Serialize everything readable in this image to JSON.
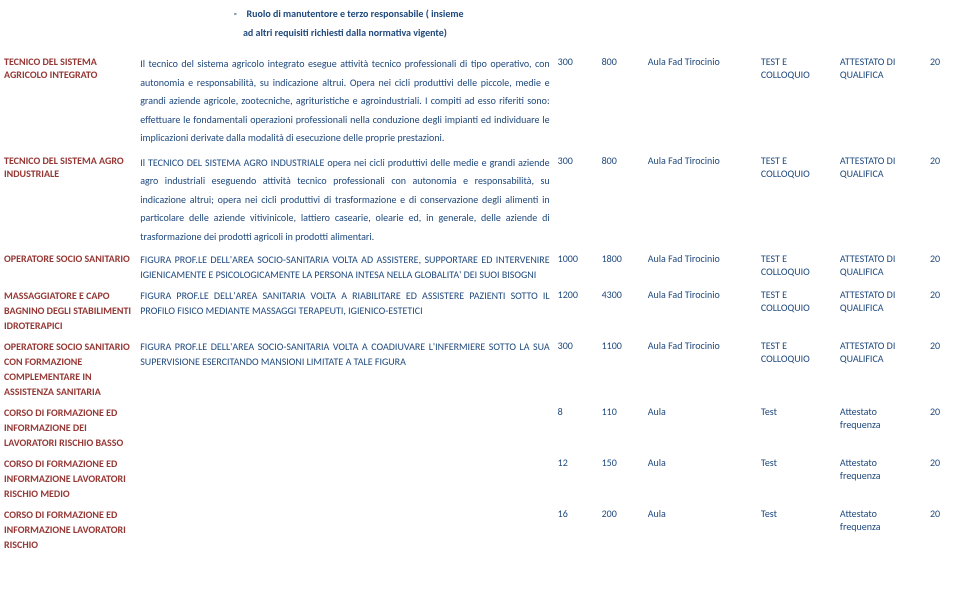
{
  "header": {
    "bullet": "-",
    "line1": "Ruolo di manutentore e terzo responsabile ( insieme",
    "line2": "ad altri requisiti richiesti dalla normativa vigente)"
  },
  "rows": [
    {
      "label": "TECNICO DEL SISTEMA AGRICOLO INTEGRATO",
      "desc": "Il tecnico del sistema agricolo integrato esegue attività tecnico professionali di tipo operativo, con autonomia e responsabilità, su indicazione altrui. Opera nei cicli produttivi delle piccole, medie e grandi aziende agricole, zootecniche, agrituristiche e agroindustriali. I compiti ad esso riferiti sono: effettuare le fondamentali operazioni professionali nella conduzione degli impianti ed individuare le implicazioni derivate dalla modalità di esecuzione delle proprie prestazioni.",
      "n1": "300",
      "n2": "800",
      "aula": "Aula Fad Tirocinio",
      "test1": "TEST E",
      "test2": "COLLOQUIO",
      "att1": "ATTESTATO DI",
      "att2": "QUALIFICA",
      "end": "20"
    },
    {
      "label": "TECNICO DEL SISTEMA AGRO INDUSTRIALE",
      "desc": "Il TECNICO DEL SISTEMA AGRO INDUSTRIALE opera nei cicli produttivi delle medie e grandi aziende agro industriali eseguendo attività tecnico professionali con autonomia e responsabilità, su indicazione altrui; opera nei cicli produttivi di trasformazione e di conservazione degli alimenti in particolare  delle aziende vitivinicole, lattiero casearie, olearie ed, in generale, delle aziende di trasformazione dei prodotti agricoli in prodotti alimentari.",
      "n1": "300",
      "n2": "800",
      "aula": "Aula Fad Tirocinio",
      "test1": "TEST E",
      "test2": "COLLOQUIO",
      "att1": "ATTESTATO DI",
      "att2": "QUALIFICA",
      "end": "20"
    },
    {
      "label": "OPERATORE SOCIO SANITARIO",
      "desc": "FIGURA PROF.LE  DELL'AREA SOCIO-SANITARIA VOLTA AD ASSISTERE, SUPPORTARE ED INTERVENIRE IGIENICAMENTE E PSICOLOGICAMENTE LA PERSONA INTESA NELLA GLOBALITA' DEI SUOI BISOGNI",
      "n1": "1000",
      "n2": "1800",
      "aula": "Aula Fad Tirocinio",
      "test1": "TEST E",
      "test2": "COLLOQUIO",
      "att1": "ATTESTATO DI",
      "att2": "QUALIFICA",
      "end": "20"
    },
    {
      "label": "MASSAGGIATORE E CAPO BAGNINO DEGLI STABILIMENTI IDROTERAPICI",
      "desc": "FIGURA PROF.LE  DELL'AREA SANITARIA VOLTA A RIABILITARE ED ASSISTERE PAZIENTI SOTTO IL PROFILO FISICO MEDIANTE MASSAGGI TERAPEUTI, IGIENICO-ESTETICI",
      "n1": "1200",
      "n2": "4300",
      "aula": "Aula Fad Tirocinio",
      "test1": "TEST E",
      "test2": "COLLOQUIO",
      "att1": "ATTESTATO DI",
      "att2": "QUALIFICA",
      "end": "20"
    },
    {
      "label": "OPERATORE SOCIO SANITARIO CON FORMAZIONE COMPLEMENTARE IN ASSISTENZA SANITARIA",
      "desc": "FIGURA PROF.LE  DELL'AREA SOCIO-SANITARIA VOLTA A COADIUVARE L'INFERMIERE SOTTO LA SUA SUPERVISIONE ESERCITANDO MANSIONI LIMITATE A TALE FIGURA",
      "n1": "300",
      "n2": "1100",
      "aula": "Aula Fad Tirocinio",
      "test1": "TEST E",
      "test2": "COLLOQUIO",
      "att1": "ATTESTATO DI",
      "att2": "QUALIFICA",
      "end": "20"
    },
    {
      "label": "CORSO DI FORMAZIONE ED INFORMAZIONE DEI LAVORATORI RISCHIO BASSO",
      "desc": "",
      "n1": "8",
      "n2": "110",
      "aula": "Aula",
      "test1": "Test",
      "test2": "",
      "att1": "Attestato",
      "att2": "frequenza",
      "end": "20"
    },
    {
      "label": "CORSO DI FORMAZIONE ED INFORMAZIONE LAVORATORI RISCHIO MEDIO",
      "desc": "",
      "n1": "12",
      "n2": "150",
      "aula": "Aula",
      "test1": "Test",
      "test2": "",
      "att1": "Attestato",
      "att2": "frequenza",
      "end": "20"
    },
    {
      "label": "CORSO DI FORMAZIONE ED INFORMAZIONE LAVORATORI RISCHIO",
      "desc": "",
      "n1": "16",
      "n2": "200",
      "aula": "Aula",
      "test1": "Test",
      "test2": "",
      "att1": "Attestato",
      "att2": "frequenza",
      "end": "20"
    }
  ]
}
